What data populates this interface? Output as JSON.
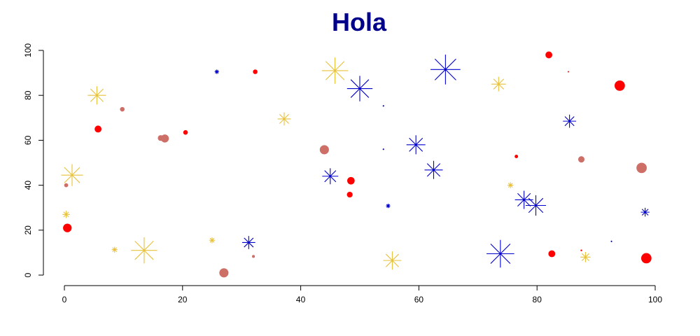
{
  "chart_data": {
    "type": "scatter",
    "title": "Hola",
    "xlabel": "",
    "ylabel": "",
    "xlim": [
      0,
      100
    ],
    "ylim": [
      0,
      100
    ],
    "x_ticks": [
      0,
      20,
      40,
      60,
      80,
      100
    ],
    "y_ticks": [
      0,
      20,
      40,
      60,
      80,
      100
    ],
    "grid": false,
    "colors": {
      "gold": "#E8C13A",
      "blue": "#0000CD",
      "red": "#FF0000",
      "rosy": "#CD6F66"
    },
    "series": [
      {
        "marker": "asterisk",
        "color": "gold",
        "points": [
          {
            "x": 1.3,
            "y": 44.5,
            "size": 3
          },
          {
            "x": 0.3,
            "y": 27,
            "size": 1
          },
          {
            "x": 5.5,
            "y": 80,
            "size": 2.5
          },
          {
            "x": 8.5,
            "y": 11.3,
            "size": 0.8
          },
          {
            "x": 13.5,
            "y": 11,
            "size": 3.6
          },
          {
            "x": 25,
            "y": 15.5,
            "size": 0.8
          },
          {
            "x": 37.2,
            "y": 69.5,
            "size": 1.8
          },
          {
            "x": 45.8,
            "y": 91,
            "size": 3.6
          },
          {
            "x": 55.5,
            "y": 6.5,
            "size": 2.5
          },
          {
            "x": 73.5,
            "y": 85,
            "size": 2
          },
          {
            "x": 75.5,
            "y": 40,
            "size": 0.8
          },
          {
            "x": 88.2,
            "y": 8,
            "size": 1.4
          }
        ]
      },
      {
        "marker": "asterisk",
        "color": "blue",
        "points": [
          {
            "x": 25.8,
            "y": 90.5,
            "size": 0.6
          },
          {
            "x": 31.2,
            "y": 14.5,
            "size": 1.8
          },
          {
            "x": 45,
            "y": 44,
            "size": 2.2
          },
          {
            "x": 50,
            "y": 83,
            "size": 3.5
          },
          {
            "x": 54.8,
            "y": 30.8,
            "size": 0.6
          },
          {
            "x": 59.5,
            "y": 58,
            "size": 2.6
          },
          {
            "x": 62.5,
            "y": 46.8,
            "size": 2.5
          },
          {
            "x": 64.5,
            "y": 91.5,
            "size": 4.1
          },
          {
            "x": 73.8,
            "y": 9.5,
            "size": 3.8
          },
          {
            "x": 77.8,
            "y": 33.5,
            "size": 2.5
          },
          {
            "x": 79.8,
            "y": 31,
            "size": 2.8
          },
          {
            "x": 85.5,
            "y": 68.5,
            "size": 1.8
          },
          {
            "x": 98.3,
            "y": 28,
            "size": 1.2
          },
          {
            "x": 54,
            "y": 75.3,
            "size": 0.2
          },
          {
            "x": 54,
            "y": 56,
            "size": 0.2
          },
          {
            "x": 92.6,
            "y": 15,
            "size": 0.2
          }
        ]
      },
      {
        "marker": "dot",
        "color": "red",
        "points": [
          {
            "x": 0.5,
            "y": 21,
            "size": 1.5
          },
          {
            "x": 5.7,
            "y": 65,
            "size": 1.2
          },
          {
            "x": 20.5,
            "y": 63.5,
            "size": 0.8
          },
          {
            "x": 32.3,
            "y": 90.5,
            "size": 0.8
          },
          {
            "x": 48.3,
            "y": 35.8,
            "size": 1
          },
          {
            "x": 48.5,
            "y": 42,
            "size": 1.3
          },
          {
            "x": 76.5,
            "y": 52.8,
            "size": 0.6
          },
          {
            "x": 82,
            "y": 98,
            "size": 1.2
          },
          {
            "x": 82.5,
            "y": 9.5,
            "size": 1.2
          },
          {
            "x": 85.3,
            "y": 90.5,
            "size": 0.25
          },
          {
            "x": 87.5,
            "y": 11,
            "size": 0.3
          },
          {
            "x": 94,
            "y": 84.3,
            "size": 1.8
          },
          {
            "x": 98.5,
            "y": 7.5,
            "size": 1.8
          }
        ]
      },
      {
        "marker": "dot",
        "color": "rosy",
        "points": [
          {
            "x": 0.3,
            "y": 40,
            "size": 0.7
          },
          {
            "x": 9.8,
            "y": 73.8,
            "size": 0.8
          },
          {
            "x": 16.3,
            "y": 61,
            "size": 1
          },
          {
            "x": 17,
            "y": 60.8,
            "size": 1.4
          },
          {
            "x": 27,
            "y": 1,
            "size": 1.6
          },
          {
            "x": 32,
            "y": 8.3,
            "size": 0.5
          },
          {
            "x": 44,
            "y": 55.8,
            "size": 1.6
          },
          {
            "x": 87.5,
            "y": 51.5,
            "size": 1.1
          },
          {
            "x": 97.7,
            "y": 47.7,
            "size": 1.8
          }
        ]
      }
    ]
  }
}
